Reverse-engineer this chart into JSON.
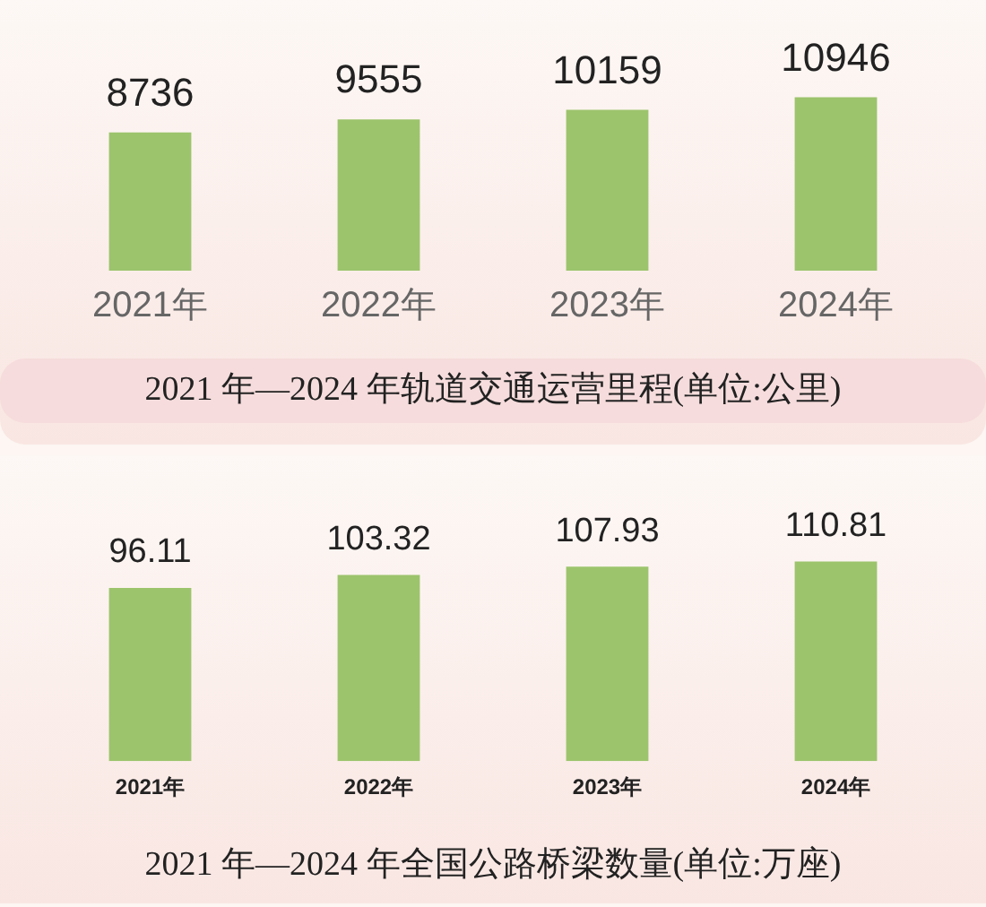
{
  "chart_data": [
    {
      "type": "bar",
      "title": "2021 年—2024 年轨道交通运营里程(单位:公里)",
      "categories": [
        "2021年",
        "2022年",
        "2023年",
        "2024年"
      ],
      "values": [
        8736,
        9555,
        10159,
        10946
      ],
      "color": "#9cc46c",
      "data_labels": true
    },
    {
      "type": "bar",
      "title": "2021 年—2024 年全国公路桥梁数量(单位:万座)",
      "categories": [
        "2021年",
        "2022年",
        "2023年",
        "2024年"
      ],
      "values": [
        96.11,
        103.32,
        107.93,
        110.81
      ],
      "color": "#9cc46c",
      "data_labels": true
    }
  ]
}
